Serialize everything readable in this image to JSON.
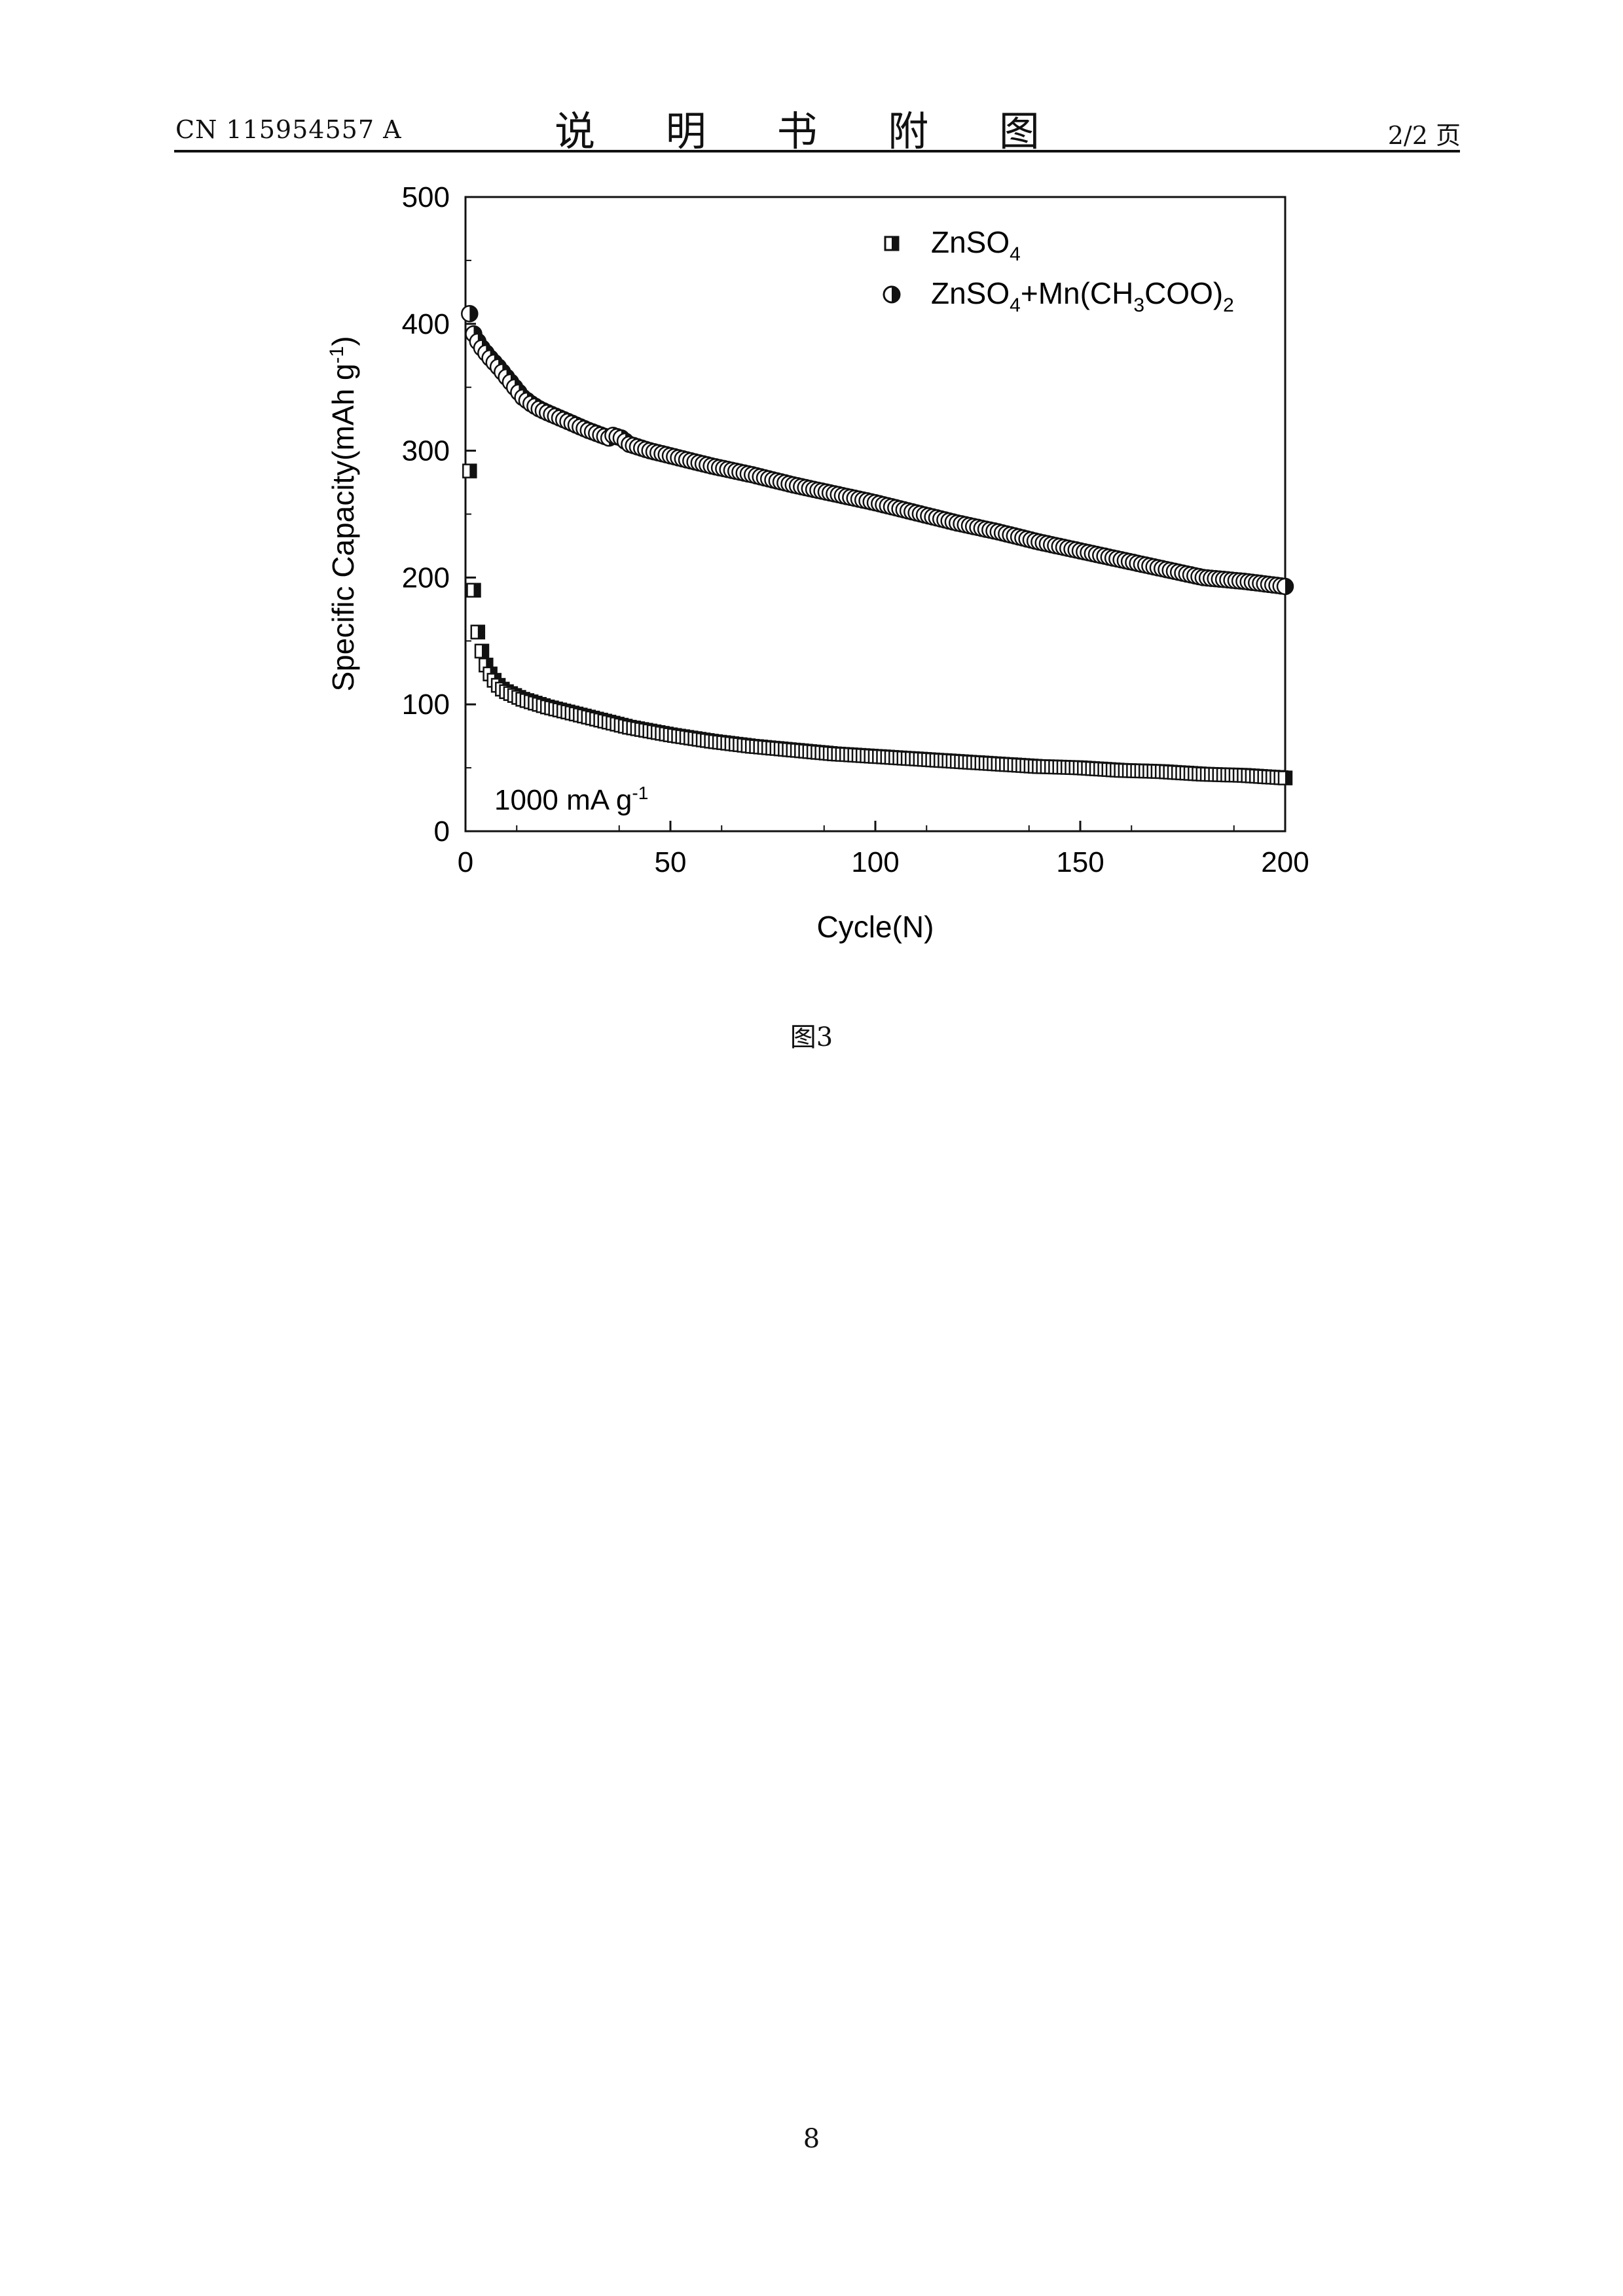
{
  "header": {
    "doc_number": "CN 115954557 A",
    "section_title": "说 明 书 附 图",
    "page_indicator": "2/2 页"
  },
  "figure": {
    "caption": "图3",
    "condition_label": "1000 mA g",
    "condition_sup": "-1"
  },
  "page_number": "8",
  "chart_data": {
    "type": "scatter",
    "xlabel": "Cycle(N)",
    "ylabel": "Specific Capacity(mAh g⁻¹)",
    "xlim": [
      0,
      200
    ],
    "ylim": [
      0,
      500
    ],
    "xticks": [
      0,
      50,
      100,
      150,
      200
    ],
    "yticks": [
      0,
      100,
      200,
      300,
      400,
      500
    ],
    "legend_position": "top-right",
    "grid": false,
    "series": [
      {
        "name": "ZnSO4",
        "marker": "half-filled-square",
        "x": [
          1,
          2,
          3,
          4,
          5,
          6,
          7,
          8,
          9,
          10,
          12,
          14,
          16,
          18,
          20,
          25,
          30,
          35,
          40,
          45,
          50,
          60,
          70,
          80,
          90,
          100,
          110,
          120,
          130,
          140,
          150,
          160,
          170,
          180,
          190,
          200
        ],
        "y": [
          284,
          190,
          157,
          142,
          131,
          124,
          119,
          115,
          112,
          110,
          107,
          104,
          102,
          100,
          98,
          94,
          90,
          86,
          82,
          79,
          76,
          71,
          67,
          64,
          61,
          59,
          57,
          55,
          53,
          51,
          50,
          48,
          47,
          45,
          44,
          42
        ]
      },
      {
        "name": "ZnSO4+Mn(CH3COO)2",
        "marker": "half-filled-circle",
        "x": [
          1,
          2,
          3,
          4,
          5,
          6,
          8,
          10,
          12,
          14,
          16,
          18,
          20,
          25,
          30,
          35,
          36,
          38,
          40,
          45,
          50,
          60,
          70,
          80,
          90,
          100,
          110,
          120,
          130,
          140,
          150,
          160,
          170,
          180,
          190,
          200
        ],
        "y": [
          408,
          392,
          386,
          381,
          377,
          373,
          366,
          358,
          350,
          342,
          337,
          333,
          330,
          323,
          316,
          310,
          312,
          310,
          305,
          300,
          296,
          288,
          281,
          273,
          266,
          259,
          251,
          243,
          236,
          228,
          221,
          214,
          207,
          200,
          197,
          193
        ]
      }
    ]
  }
}
